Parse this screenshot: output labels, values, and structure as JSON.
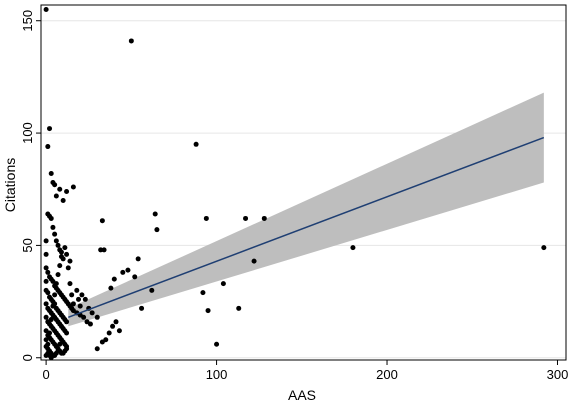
{
  "chart_data": {
    "type": "scatter",
    "title": "",
    "xlabel": "AAS",
    "ylabel": "Citations",
    "xlim": [
      -3,
      305
    ],
    "ylim": [
      -1,
      157
    ],
    "x_ticks": [
      0,
      100,
      200,
      300
    ],
    "y_ticks": [
      0,
      50,
      100,
      150
    ],
    "grid": "horizontal",
    "legend": "none",
    "colors": {
      "points": "#000000",
      "fit_line": "#1f3f73",
      "ci_band": "#bebebe",
      "grid": "#e6e6e6",
      "frame": "#000000"
    },
    "series": [
      {
        "type": "scatter",
        "points": [
          [
            0,
            155
          ],
          [
            1,
            94
          ],
          [
            2,
            102
          ],
          [
            3,
            82
          ],
          [
            4,
            78
          ],
          [
            5,
            77
          ],
          [
            6,
            72
          ],
          [
            8,
            75
          ],
          [
            10,
            70
          ],
          [
            12,
            74
          ],
          [
            16,
            76
          ],
          [
            1,
            64
          ],
          [
            2,
            63
          ],
          [
            3,
            62
          ],
          [
            4,
            58
          ],
          [
            5,
            55
          ],
          [
            6,
            52
          ],
          [
            7,
            50
          ],
          [
            8,
            48
          ],
          [
            9,
            47
          ],
          [
            10,
            44
          ],
          [
            12,
            46
          ],
          [
            14,
            43
          ],
          [
            1,
            38
          ],
          [
            2,
            36
          ],
          [
            3,
            35
          ],
          [
            4,
            34
          ],
          [
            5,
            32
          ],
          [
            6,
            31
          ],
          [
            7,
            30
          ],
          [
            8,
            29
          ],
          [
            9,
            28
          ],
          [
            10,
            27
          ],
          [
            11,
            26
          ],
          [
            12,
            25
          ],
          [
            13,
            24
          ],
          [
            14,
            23
          ],
          [
            15,
            22
          ],
          [
            16,
            21
          ],
          [
            18,
            20
          ],
          [
            20,
            19
          ],
          [
            22,
            18
          ],
          [
            24,
            16
          ],
          [
            26,
            15
          ],
          [
            1,
            29
          ],
          [
            2,
            27
          ],
          [
            3,
            26
          ],
          [
            4,
            25
          ],
          [
            5,
            24
          ],
          [
            6,
            22
          ],
          [
            7,
            21
          ],
          [
            8,
            20
          ],
          [
            9,
            19
          ],
          [
            10,
            18
          ],
          [
            11,
            17
          ],
          [
            12,
            16
          ],
          [
            1,
            22
          ],
          [
            2,
            21
          ],
          [
            3,
            20
          ],
          [
            4,
            19
          ],
          [
            5,
            18
          ],
          [
            6,
            17
          ],
          [
            7,
            16
          ],
          [
            8,
            15
          ],
          [
            9,
            14
          ],
          [
            10,
            13
          ],
          [
            11,
            12
          ],
          [
            12,
            11
          ],
          [
            1,
            16
          ],
          [
            2,
            15
          ],
          [
            3,
            14
          ],
          [
            4,
            13
          ],
          [
            5,
            12
          ],
          [
            6,
            11
          ],
          [
            7,
            10
          ],
          [
            8,
            9
          ],
          [
            9,
            8
          ],
          [
            10,
            7
          ],
          [
            11,
            6
          ],
          [
            12,
            5
          ],
          [
            1,
            10
          ],
          [
            2,
            9
          ],
          [
            3,
            8
          ],
          [
            4,
            7
          ],
          [
            5,
            6
          ],
          [
            6,
            5
          ],
          [
            7,
            4
          ],
          [
            8,
            3
          ],
          [
            9,
            2
          ],
          [
            10,
            2
          ],
          [
            11,
            3
          ],
          [
            12,
            4
          ],
          [
            0,
            5
          ],
          [
            1,
            4
          ],
          [
            2,
            3
          ],
          [
            3,
            2
          ],
          [
            4,
            1
          ],
          [
            5,
            1
          ],
          [
            6,
            2
          ],
          [
            7,
            3
          ],
          [
            8,
            6
          ],
          [
            0,
            1
          ],
          [
            2,
            1
          ],
          [
            3,
            0
          ],
          [
            0,
            12
          ],
          [
            0,
            18
          ],
          [
            0,
            24
          ],
          [
            0,
            30
          ],
          [
            0,
            40
          ],
          [
            0,
            46
          ],
          [
            0,
            52
          ],
          [
            0,
            34
          ],
          [
            0,
            8
          ],
          [
            1,
            2
          ],
          [
            1,
            6
          ],
          [
            2,
            11
          ],
          [
            3,
            17
          ],
          [
            4,
            23
          ],
          [
            5,
            28
          ],
          [
            6,
            33
          ],
          [
            7,
            37
          ],
          [
            8,
            41
          ],
          [
            9,
            45
          ],
          [
            11,
            49
          ],
          [
            13,
            40
          ],
          [
            14,
            33
          ],
          [
            15,
            28
          ],
          [
            16,
            24
          ],
          [
            18,
            30
          ],
          [
            19,
            26
          ],
          [
            20,
            23
          ],
          [
            21,
            28
          ],
          [
            23,
            26
          ],
          [
            25,
            22
          ],
          [
            27,
            20
          ],
          [
            30,
            18
          ],
          [
            32,
            48
          ],
          [
            34,
            48
          ],
          [
            33,
            61
          ],
          [
            35,
            8
          ],
          [
            37,
            11
          ],
          [
            39,
            14
          ],
          [
            41,
            16
          ],
          [
            43,
            12
          ],
          [
            45,
            38
          ],
          [
            48,
            39
          ],
          [
            50,
            141
          ],
          [
            52,
            36
          ],
          [
            54,
            44
          ],
          [
            56,
            22
          ],
          [
            62,
            30
          ],
          [
            64,
            64
          ],
          [
            65,
            57
          ],
          [
            88,
            95
          ],
          [
            92,
            29
          ],
          [
            94,
            62
          ],
          [
            95,
            21
          ],
          [
            100,
            6
          ],
          [
            104,
            33
          ],
          [
            113,
            22
          ],
          [
            117,
            62
          ],
          [
            122,
            43
          ],
          [
            128,
            62
          ],
          [
            180,
            49
          ],
          [
            292,
            49
          ],
          [
            30,
            4
          ],
          [
            33,
            7
          ],
          [
            38,
            31
          ],
          [
            40,
            35
          ]
        ]
      }
    ],
    "fit": {
      "type": "line",
      "x": [
        13,
        292
      ],
      "y": [
        18,
        98
      ]
    },
    "ci_band": {
      "x": [
        13,
        292
      ],
      "lower": [
        14,
        78
      ],
      "upper": [
        22,
        118
      ]
    }
  }
}
